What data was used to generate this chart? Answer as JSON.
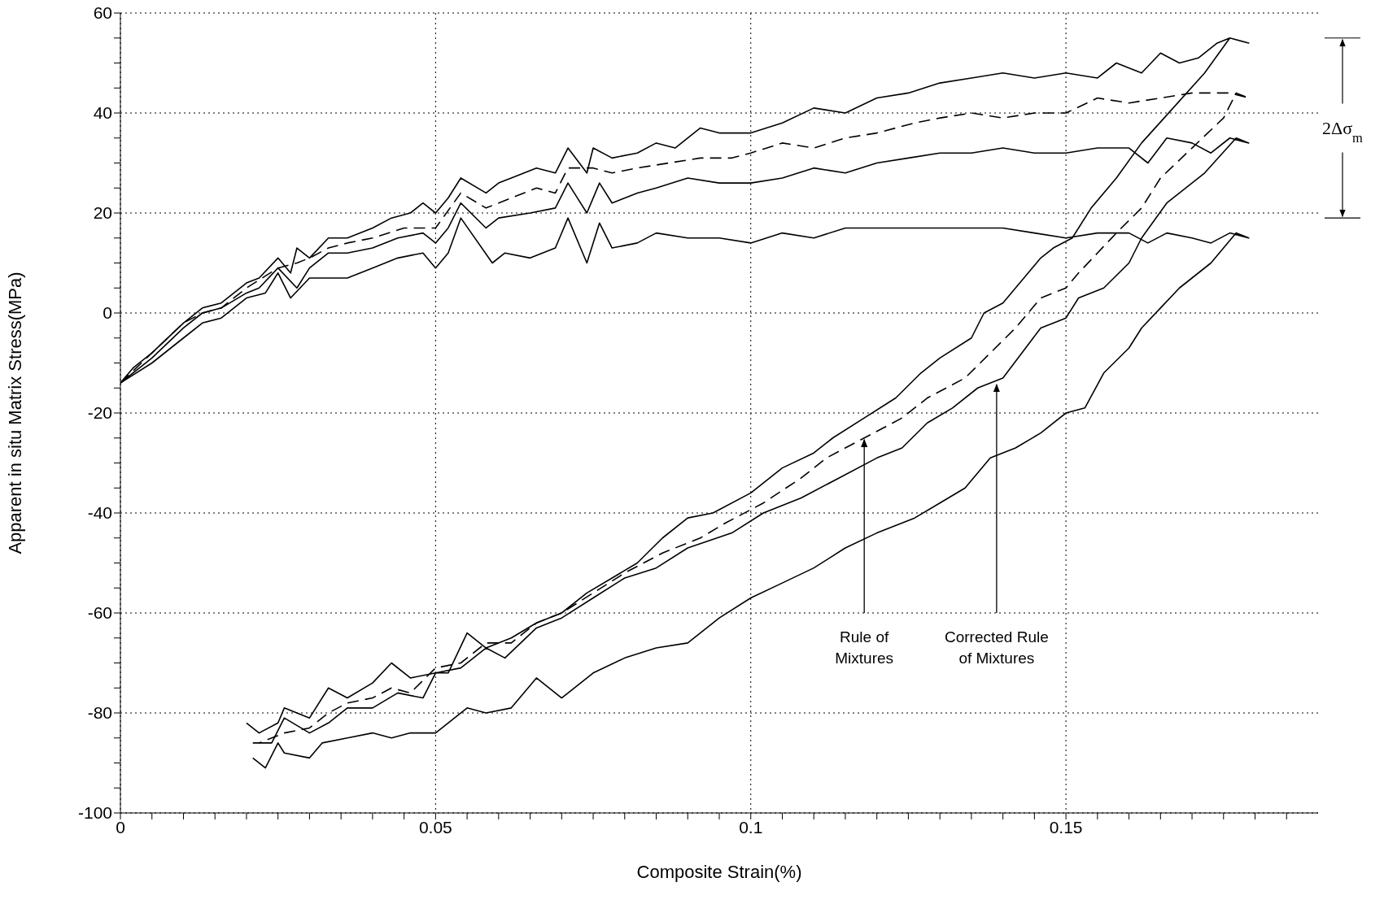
{
  "chart_data": {
    "type": "line",
    "xlabel": "Composite Strain(%)",
    "ylabel": "Apparent in situ Matrix Stress(MPa)",
    "xlim": [
      0,
      0.19
    ],
    "ylim": [
      -100,
      60
    ],
    "xticks": [
      0,
      {
        "value": 0.005,
        "label": null
      },
      {
        "value": 0.01,
        "label": null
      },
      {
        "value": 0.015,
        "label": null
      },
      {
        "value": 0.02,
        "label": null
      },
      {
        "value": 0.025,
        "label": null
      },
      {
        "value": 0.03,
        "label": null
      },
      {
        "value": 0.035,
        "label": null
      },
      {
        "value": 0.04,
        "label": null
      },
      {
        "value": 0.045,
        "label": null
      },
      0.05,
      {
        "value": 0.055,
        "label": null
      },
      {
        "value": 0.06,
        "label": null
      },
      {
        "value": 0.065,
        "label": null
      },
      {
        "value": 0.07,
        "label": null
      },
      {
        "value": 0.075,
        "label": null
      },
      {
        "value": 0.08,
        "label": null
      },
      {
        "value": 0.085,
        "label": null
      },
      {
        "value": 0.09,
        "label": null
      },
      {
        "value": 0.095,
        "label": null
      },
      0.1,
      {
        "value": 0.105,
        "label": null
      },
      {
        "value": 0.11,
        "label": null
      },
      {
        "value": 0.115,
        "label": null
      },
      {
        "value": 0.12,
        "label": null
      },
      {
        "value": 0.125,
        "label": null
      },
      {
        "value": 0.13,
        "label": null
      },
      {
        "value": 0.135,
        "label": null
      },
      {
        "value": 0.14,
        "label": null
      },
      {
        "value": 0.145,
        "label": null
      },
      0.15,
      {
        "value": 0.155,
        "label": null
      },
      {
        "value": 0.16,
        "label": null
      },
      {
        "value": 0.165,
        "label": null
      },
      {
        "value": 0.17,
        "label": null
      },
      {
        "value": 0.175,
        "label": null
      },
      {
        "value": 0.18,
        "label": null
      },
      {
        "value": 0.185,
        "label": null
      }
    ],
    "yticks": [
      -100,
      {
        "value": -95,
        "label": null
      },
      {
        "value": -90,
        "label": null
      },
      {
        "value": -85,
        "label": null
      },
      -80,
      {
        "value": -75,
        "label": null
      },
      {
        "value": -70,
        "label": null
      },
      {
        "value": -65,
        "label": null
      },
      -60,
      {
        "value": -55,
        "label": null
      },
      {
        "value": -50,
        "label": null
      },
      {
        "value": -45,
        "label": null
      },
      -40,
      {
        "value": -35,
        "label": null
      },
      {
        "value": -30,
        "label": null
      },
      {
        "value": -25,
        "label": null
      },
      -20,
      {
        "value": -15,
        "label": null
      },
      {
        "value": -10,
        "label": null
      },
      {
        "value": -5,
        "label": null
      },
      0,
      {
        "value": 5,
        "label": null
      },
      {
        "value": 10,
        "label": null
      },
      {
        "value": 15,
        "label": null
      },
      20,
      {
        "value": 25,
        "label": null
      },
      {
        "value": 30,
        "label": null
      },
      {
        "value": 35,
        "label": null
      },
      40,
      {
        "value": 45,
        "label": null
      },
      {
        "value": 50,
        "label": null
      },
      {
        "value": 55,
        "label": null
      },
      60
    ],
    "grid": true,
    "marker": "none",
    "annotations": [
      {
        "text": "Rule of Mixtures",
        "x": 0.118,
        "y": -25
      },
      {
        "text": "Corrected Rule of Mixtures",
        "x": 0.139,
        "y": -14
      },
      "2Δσ$_{m}$"
    ],
    "series": [
      {
        "color": "#000000",
        "line_style": "solid",
        "x": [
          0,
          0.002,
          0.005,
          0.01,
          0.013,
          0.016,
          0.02,
          0.022,
          0.025,
          0.027,
          0.028,
          0.03,
          0.033,
          0.036,
          0.04,
          0.043,
          0.046,
          0.048,
          0.05,
          0.052,
          0.054,
          0.058,
          0.06,
          0.062,
          0.066,
          0.069,
          0.071,
          0.074,
          0.075,
          0.078,
          0.082,
          0.085,
          0.088,
          0.092,
          0.095,
          0.1,
          0.105,
          0.11,
          0.115,
          0.12,
          0.125,
          0.13,
          0.135,
          0.14,
          0.145,
          0.15,
          0.155,
          0.158,
          0.162,
          0.165,
          0.168,
          0.171,
          0.174,
          0.176,
          0.179,
          0.176,
          0.172,
          0.167,
          0.162,
          0.158,
          0.154,
          0.151,
          0.148,
          0.146,
          0.144,
          0.14,
          0.137,
          0.135,
          0.13,
          0.127,
          0.123,
          0.118,
          0.113,
          0.11,
          0.105,
          0.1,
          0.094,
          0.09,
          0.086,
          0.082,
          0.078,
          0.074,
          0.07,
          0.066,
          0.062,
          0.058,
          0.055,
          0.052,
          0.05,
          0.046,
          0.043,
          0.04,
          0.036,
          0.033,
          0.03,
          0.026,
          0.025,
          0.022,
          0.02
        ],
        "values": [
          -14,
          -11,
          -8,
          -2,
          1,
          2,
          6,
          7,
          11,
          8,
          13,
          11,
          15,
          15,
          17,
          19,
          20,
          22,
          20,
          23,
          27,
          24,
          26,
          27,
          29,
          28,
          33,
          28,
          33,
          31,
          32,
          34,
          33,
          37,
          36,
          36,
          38,
          41,
          40,
          43,
          44,
          46,
          47,
          48,
          47,
          48,
          47,
          50,
          48,
          52,
          50,
          51,
          54,
          55,
          54,
          55,
          48,
          41,
          34,
          27,
          21,
          15,
          13,
          11,
          8,
          2,
          0,
          -5,
          -9,
          -12,
          -17,
          -21,
          -25,
          -28,
          -31,
          -36,
          -40,
          -41,
          -45,
          -50,
          -53,
          -56,
          -60,
          -62,
          -65,
          -67,
          -64,
          -72,
          -72,
          -73,
          -70,
          -74,
          -77,
          -75,
          -81,
          -79,
          -82,
          -84,
          -82
        ]
      },
      {
        "color": "#000000",
        "line_style": "dashed",
        "x": [
          0,
          0.005,
          0.01,
          0.013,
          0.016,
          0.02,
          0.025,
          0.028,
          0.03,
          0.033,
          0.036,
          0.04,
          0.045,
          0.05,
          0.054,
          0.058,
          0.062,
          0.066,
          0.069,
          0.071,
          0.075,
          0.078,
          0.082,
          0.087,
          0.092,
          0.097,
          0.1,
          0.105,
          0.11,
          0.115,
          0.12,
          0.126,
          0.13,
          0.135,
          0.14,
          0.145,
          0.15,
          0.155,
          0.16,
          0.165,
          0.17,
          0.176,
          0.179,
          0.177,
          0.175,
          0.17,
          0.165,
          0.162,
          0.158,
          0.155,
          0.152,
          0.15,
          0.146,
          0.142,
          0.138,
          0.134,
          0.128,
          0.124,
          0.118,
          0.112,
          0.108,
          0.102,
          0.096,
          0.092,
          0.086,
          0.08,
          0.075,
          0.07,
          0.066,
          0.062,
          0.058,
          0.054,
          0.05,
          0.046,
          0.043,
          0.04,
          0.036,
          0.033,
          0.03,
          0.026,
          0.022
        ],
        "values": [
          -14,
          -8,
          -2,
          0,
          1,
          5,
          9,
          10,
          11,
          13,
          14,
          15,
          17,
          17,
          24,
          21,
          23,
          25,
          24,
          29,
          29,
          28,
          29,
          30,
          31,
          31,
          32,
          34,
          33,
          35,
          36,
          38,
          39,
          40,
          39,
          40,
          40,
          43,
          42,
          43,
          44,
          44,
          43,
          44,
          39,
          33,
          27,
          21,
          16,
          12,
          8,
          5,
          3,
          -3,
          -8,
          -13,
          -17,
          -21,
          -25,
          -29,
          -33,
          -38,
          -42,
          -45,
          -48,
          -52,
          -56,
          -60,
          -62,
          -66,
          -66,
          -70,
          -71,
          -76,
          -75,
          -77,
          -78,
          -80,
          -83,
          -84,
          -86
        ]
      },
      {
        "color": "#000000",
        "line_style": "solid",
        "x": [
          0,
          0.005,
          0.01,
          0.013,
          0.016,
          0.02,
          0.022,
          0.025,
          0.028,
          0.03,
          0.033,
          0.036,
          0.04,
          0.044,
          0.048,
          0.05,
          0.052,
          0.054,
          0.058,
          0.06,
          0.065,
          0.069,
          0.071,
          0.074,
          0.076,
          0.078,
          0.082,
          0.085,
          0.09,
          0.095,
          0.1,
          0.105,
          0.11,
          0.115,
          0.12,
          0.125,
          0.13,
          0.135,
          0.14,
          0.145,
          0.15,
          0.155,
          0.16,
          0.163,
          0.166,
          0.17,
          0.173,
          0.176,
          0.179,
          0.177,
          0.172,
          0.166,
          0.162,
          0.16,
          0.156,
          0.152,
          0.15,
          0.146,
          0.143,
          0.14,
          0.136,
          0.132,
          0.128,
          0.124,
          0.12,
          0.114,
          0.108,
          0.102,
          0.097,
          0.09,
          0.085,
          0.08,
          0.075,
          0.07,
          0.066,
          0.061,
          0.058,
          0.054,
          0.05,
          0.048,
          0.044,
          0.04,
          0.036,
          0.033,
          0.03,
          0.026,
          0.024,
          0.021
        ],
        "values": [
          -14,
          -9,
          -3,
          0,
          1,
          4,
          5,
          9,
          5,
          9,
          12,
          12,
          13,
          15,
          16,
          14,
          17,
          22,
          17,
          19,
          20,
          21,
          26,
          20,
          26,
          22,
          24,
          25,
          27,
          26,
          26,
          27,
          29,
          28,
          30,
          31,
          32,
          32,
          33,
          32,
          32,
          33,
          33,
          30,
          35,
          34,
          32,
          35,
          34,
          35,
          28,
          22,
          15,
          10,
          5,
          3,
          -1,
          -3,
          -8,
          -13,
          -15,
          -19,
          -22,
          -27,
          -29,
          -33,
          -37,
          -40,
          -44,
          -47,
          -51,
          -53,
          -57,
          -61,
          -63,
          -69,
          -67,
          -71,
          -72,
          -77,
          -76,
          -79,
          -79,
          -82,
          -84,
          -81,
          -86,
          -86
        ]
      },
      {
        "color": "#000000",
        "line_style": "solid",
        "x": [
          0,
          0.005,
          0.01,
          0.013,
          0.016,
          0.02,
          0.023,
          0.025,
          0.027,
          0.03,
          0.033,
          0.036,
          0.04,
          0.044,
          0.048,
          0.05,
          0.052,
          0.054,
          0.059,
          0.061,
          0.065,
          0.069,
          0.071,
          0.074,
          0.076,
          0.078,
          0.082,
          0.085,
          0.09,
          0.095,
          0.1,
          0.105,
          0.11,
          0.115,
          0.12,
          0.125,
          0.13,
          0.135,
          0.14,
          0.145,
          0.15,
          0.155,
          0.16,
          0.163,
          0.166,
          0.17,
          0.173,
          0.176,
          0.179,
          0.177,
          0.173,
          0.168,
          0.165,
          0.162,
          0.16,
          0.156,
          0.153,
          0.15,
          0.146,
          0.142,
          0.138,
          0.134,
          0.13,
          0.126,
          0.12,
          0.115,
          0.11,
          0.105,
          0.1,
          0.095,
          0.09,
          0.085,
          0.08,
          0.075,
          0.07,
          0.066,
          0.062,
          0.058,
          0.055,
          0.05,
          0.046,
          0.043,
          0.04,
          0.036,
          0.032,
          0.03,
          0.026,
          0.025,
          0.023,
          0.021
        ],
        "values": [
          -14,
          -10,
          -5,
          -2,
          -1,
          3,
          4,
          8,
          3,
          7,
          7,
          7,
          9,
          11,
          12,
          9,
          12,
          19,
          10,
          12,
          11,
          13,
          19,
          10,
          18,
          13,
          14,
          16,
          15,
          15,
          14,
          16,
          15,
          17,
          17,
          17,
          17,
          17,
          17,
          16,
          15,
          16,
          16,
          14,
          16,
          15,
          14,
          16,
          15,
          16,
          10,
          5,
          1,
          -3,
          -7,
          -12,
          -19,
          -20,
          -24,
          -27,
          -29,
          -35,
          -38,
          -41,
          -44,
          -47,
          -51,
          -54,
          -57,
          -61,
          -66,
          -67,
          -69,
          -72,
          -77,
          -73,
          -79,
          -80,
          -79,
          -84,
          -84,
          -85,
          -84,
          -85,
          -86,
          -89,
          -88,
          -86,
          -91,
          -89
        ]
      }
    ]
  }
}
